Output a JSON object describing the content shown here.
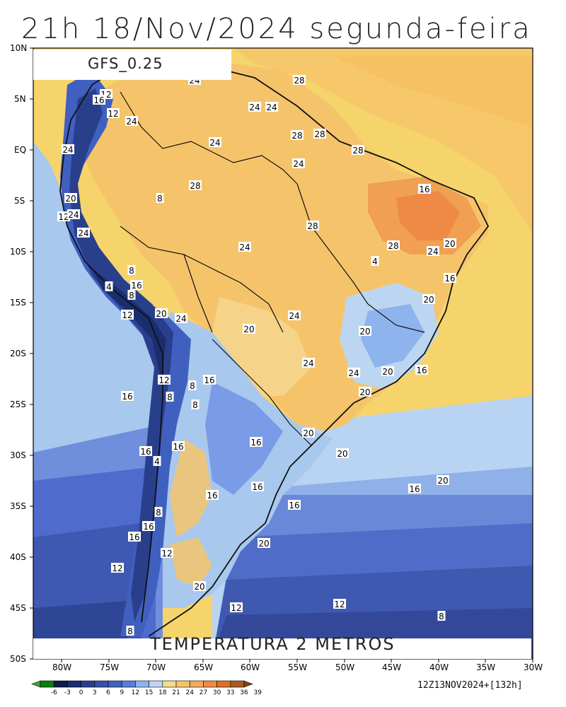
{
  "title": "21h 18/Nov/2024 segunda-feira",
  "model": "GFS_0.25",
  "variable": "TEMPERATURA 2 METROS",
  "run": "12Z13NOV2024+[132h]",
  "lat_labels": [
    "10N",
    "5N",
    "EQ",
    "5S",
    "10S",
    "15S",
    "20S",
    "25S",
    "30S",
    "35S",
    "40S",
    "45S",
    "50S"
  ],
  "lon_labels": [
    "80W",
    "75W",
    "70W",
    "65W",
    "60W",
    "55W",
    "50W",
    "45W",
    "40W",
    "35W",
    "30W"
  ],
  "colorbar": {
    "ticks": [
      "-6",
      "-3",
      "0",
      "3",
      "6",
      "9",
      "12",
      "15",
      "18",
      "21",
      "24",
      "27",
      "30",
      "33",
      "36",
      "39"
    ],
    "colors": [
      "#3aa53a",
      "#0a7f0a",
      "#0e1a4a",
      "#1a2e6e",
      "#2a3f8c",
      "#3452a8",
      "#4060c0",
      "#5a7ddc",
      "#8eb4ee",
      "#bcd6f2",
      "#f5dc8a",
      "#f5c46a",
      "#f3a85a",
      "#ee8a45",
      "#d8702e",
      "#a85a20",
      "#8a4015"
    ]
  },
  "contour_labels": [
    "28",
    "24",
    "12",
    "16",
    "12",
    "24",
    "24",
    "24",
    "28",
    "24",
    "28",
    "24",
    "28",
    "24",
    "28",
    "16",
    "20",
    "12",
    "24",
    "8",
    "24",
    "28",
    "28",
    "24",
    "24",
    "20",
    "4",
    "8",
    "4",
    "16",
    "8",
    "12",
    "20",
    "24",
    "16",
    "20",
    "20",
    "24",
    "20",
    "12",
    "8",
    "16",
    "16",
    "8",
    "24",
    "24",
    "20",
    "20",
    "16",
    "8",
    "20",
    "16",
    "20",
    "16",
    "4",
    "16",
    "16",
    "16",
    "8",
    "16",
    "16",
    "16",
    "12",
    "20",
    "12",
    "12",
    "20",
    "8",
    "12",
    "8",
    "16",
    "20"
  ]
}
